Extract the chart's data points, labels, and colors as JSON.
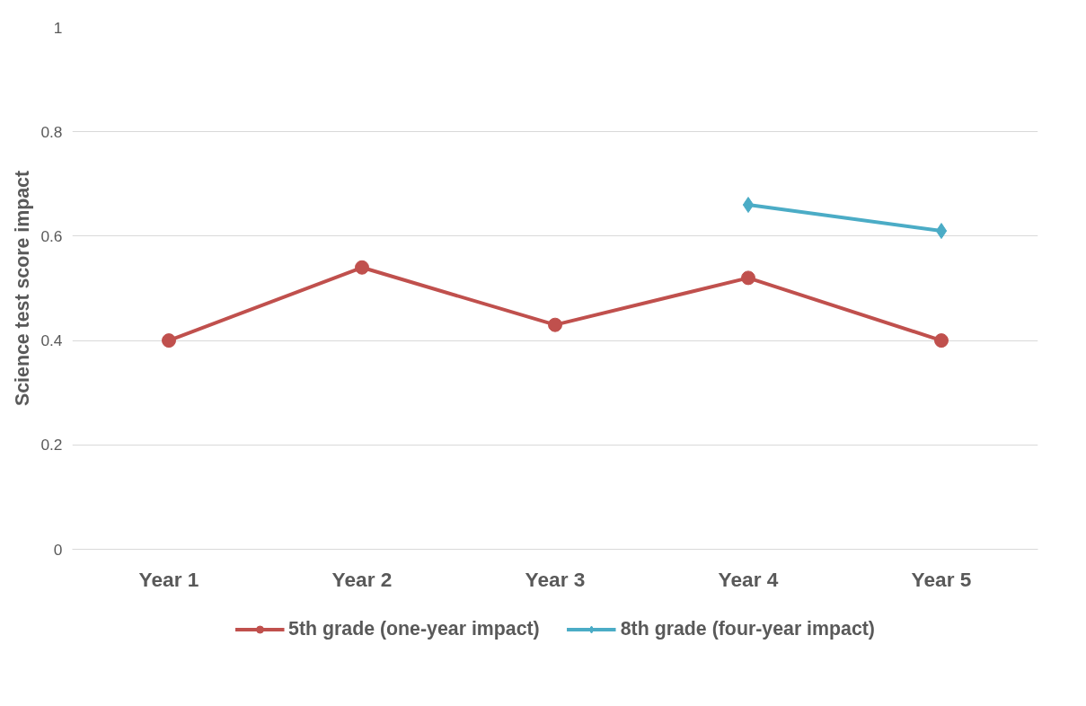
{
  "chart_data": {
    "type": "line",
    "ylabel": "Science test score impact",
    "categories": [
      "Year 1",
      "Year 2",
      "Year 3",
      "Year 4",
      "Year 5"
    ],
    "series": [
      {
        "name": "5th grade (one-year impact)",
        "color": "#c0504d",
        "marker": "circle",
        "values": [
          0.4,
          0.54,
          0.43,
          0.52,
          0.4
        ]
      },
      {
        "name": "8th grade (four-year impact)",
        "color": "#4bacc6",
        "marker": "diamond",
        "values": [
          null,
          null,
          null,
          0.66,
          0.61
        ]
      }
    ],
    "ylim": [
      0,
      1
    ],
    "yticks": [
      0,
      0.2,
      0.4,
      0.6,
      0.8,
      1
    ],
    "grid": "y",
    "legend": "bottom"
  }
}
